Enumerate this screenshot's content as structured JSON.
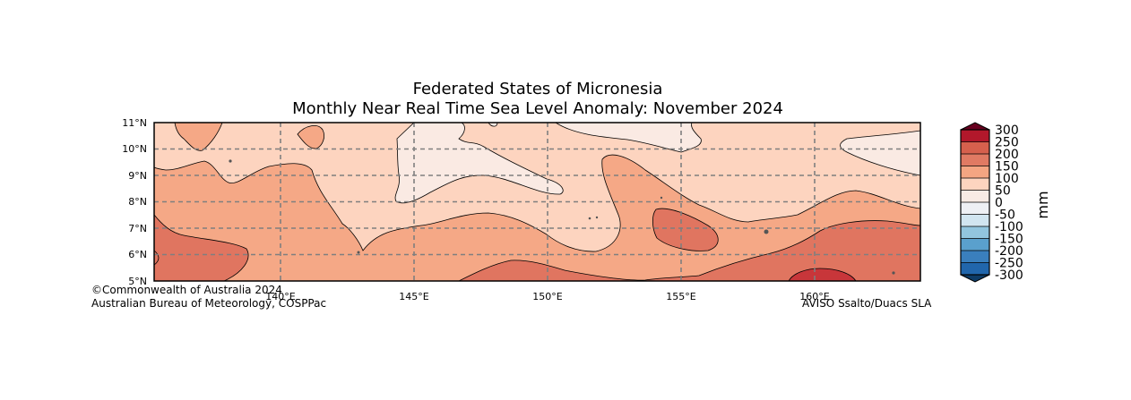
{
  "title": {
    "line1": "Federated States of Micronesia",
    "line2": "Monthly Near Real Time Sea Level Anomaly: November 2024"
  },
  "axes": {
    "lon_ticks": [
      "140°E",
      "145°E",
      "150°E",
      "155°E",
      "160°E"
    ],
    "lat_ticks": [
      "11°N",
      "10°N",
      "9°N",
      "8°N",
      "7°N",
      "6°N",
      "5°N"
    ],
    "lon_range": [
      135.25,
      164
    ],
    "lat_range": [
      5,
      11
    ],
    "gridlines": true
  },
  "colorbar": {
    "unit": "mm",
    "labels": [
      "300",
      "250",
      "200",
      "150",
      "100",
      "50",
      "0",
      "-50",
      "-100",
      "-150",
      "-200",
      "-250",
      "-300"
    ],
    "colors": [
      "#67001f",
      "#b2182b",
      "#d6604d",
      "#e07a63",
      "#f4a582",
      "#fdd4bf",
      "#f8ebe4",
      "#eef0f4",
      "#d1e5f0",
      "#92c5de",
      "#4393c3",
      "#2166ac",
      "#0d3b66"
    ]
  },
  "map_colors": {
    "c200": "#e07560",
    "c150": "#f5a886",
    "c100": "#fdd4bf",
    "c50": "#faeae3",
    "c250": "#c8363a"
  },
  "credits": {
    "left1": "©Commonwealth of Australia 2024",
    "left2": "Australian Bureau of Meteorology, COSPPac",
    "right": "AVISO Ssalto/Duacs SLA"
  }
}
